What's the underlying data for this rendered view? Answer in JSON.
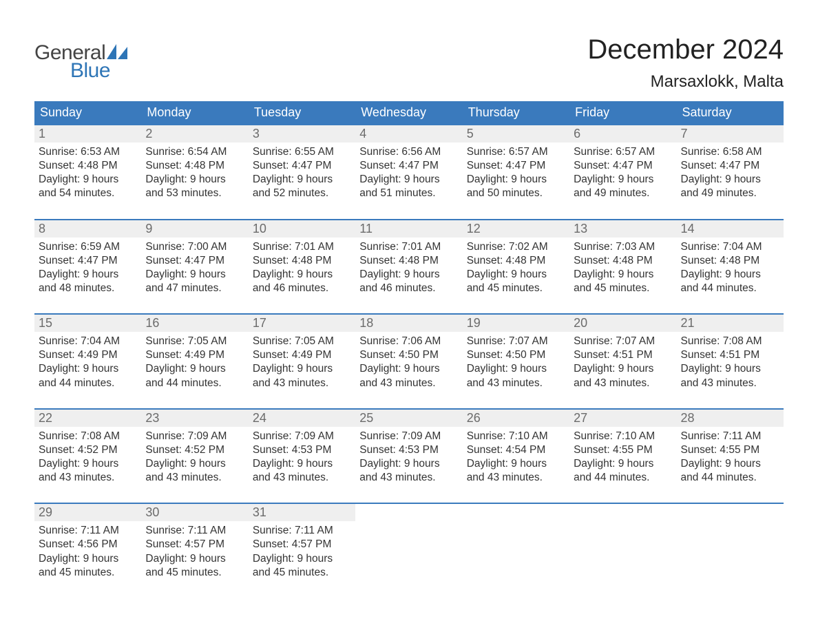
{
  "brand": {
    "general": "General",
    "blue": "Blue"
  },
  "title": "December 2024",
  "location": "Marsaxlokk, Malta",
  "colors": {
    "header_bg": "#3a7abd",
    "header_text": "#ffffff",
    "week_border": "#3a7abd",
    "daynum_bg": "#efefef",
    "daynum_text": "#6b6b6b",
    "body_text": "#333333",
    "logo_blue": "#2e75b6",
    "logo_gray": "#444444",
    "page_bg": "#ffffff"
  },
  "typography": {
    "title_fontsize": 40,
    "location_fontsize": 24,
    "header_fontsize": 18,
    "daynum_fontsize": 18,
    "body_fontsize": 15.5,
    "logo_fontsize": 30
  },
  "dayNames": [
    "Sunday",
    "Monday",
    "Tuesday",
    "Wednesday",
    "Thursday",
    "Friday",
    "Saturday"
  ],
  "weeks": [
    [
      {
        "n": "1",
        "sr": "6:53 AM",
        "ss": "4:48 PM",
        "dl": "9 hours and 54 minutes."
      },
      {
        "n": "2",
        "sr": "6:54 AM",
        "ss": "4:48 PM",
        "dl": "9 hours and 53 minutes."
      },
      {
        "n": "3",
        "sr": "6:55 AM",
        "ss": "4:47 PM",
        "dl": "9 hours and 52 minutes."
      },
      {
        "n": "4",
        "sr": "6:56 AM",
        "ss": "4:47 PM",
        "dl": "9 hours and 51 minutes."
      },
      {
        "n": "5",
        "sr": "6:57 AM",
        "ss": "4:47 PM",
        "dl": "9 hours and 50 minutes."
      },
      {
        "n": "6",
        "sr": "6:57 AM",
        "ss": "4:47 PM",
        "dl": "9 hours and 49 minutes."
      },
      {
        "n": "7",
        "sr": "6:58 AM",
        "ss": "4:47 PM",
        "dl": "9 hours and 49 minutes."
      }
    ],
    [
      {
        "n": "8",
        "sr": "6:59 AM",
        "ss": "4:47 PM",
        "dl": "9 hours and 48 minutes."
      },
      {
        "n": "9",
        "sr": "7:00 AM",
        "ss": "4:47 PM",
        "dl": "9 hours and 47 minutes."
      },
      {
        "n": "10",
        "sr": "7:01 AM",
        "ss": "4:48 PM",
        "dl": "9 hours and 46 minutes."
      },
      {
        "n": "11",
        "sr": "7:01 AM",
        "ss": "4:48 PM",
        "dl": "9 hours and 46 minutes."
      },
      {
        "n": "12",
        "sr": "7:02 AM",
        "ss": "4:48 PM",
        "dl": "9 hours and 45 minutes."
      },
      {
        "n": "13",
        "sr": "7:03 AM",
        "ss": "4:48 PM",
        "dl": "9 hours and 45 minutes."
      },
      {
        "n": "14",
        "sr": "7:04 AM",
        "ss": "4:48 PM",
        "dl": "9 hours and 44 minutes."
      }
    ],
    [
      {
        "n": "15",
        "sr": "7:04 AM",
        "ss": "4:49 PM",
        "dl": "9 hours and 44 minutes."
      },
      {
        "n": "16",
        "sr": "7:05 AM",
        "ss": "4:49 PM",
        "dl": "9 hours and 44 minutes."
      },
      {
        "n": "17",
        "sr": "7:05 AM",
        "ss": "4:49 PM",
        "dl": "9 hours and 43 minutes."
      },
      {
        "n": "18",
        "sr": "7:06 AM",
        "ss": "4:50 PM",
        "dl": "9 hours and 43 minutes."
      },
      {
        "n": "19",
        "sr": "7:07 AM",
        "ss": "4:50 PM",
        "dl": "9 hours and 43 minutes."
      },
      {
        "n": "20",
        "sr": "7:07 AM",
        "ss": "4:51 PM",
        "dl": "9 hours and 43 minutes."
      },
      {
        "n": "21",
        "sr": "7:08 AM",
        "ss": "4:51 PM",
        "dl": "9 hours and 43 minutes."
      }
    ],
    [
      {
        "n": "22",
        "sr": "7:08 AM",
        "ss": "4:52 PM",
        "dl": "9 hours and 43 minutes."
      },
      {
        "n": "23",
        "sr": "7:09 AM",
        "ss": "4:52 PM",
        "dl": "9 hours and 43 minutes."
      },
      {
        "n": "24",
        "sr": "7:09 AM",
        "ss": "4:53 PM",
        "dl": "9 hours and 43 minutes."
      },
      {
        "n": "25",
        "sr": "7:09 AM",
        "ss": "4:53 PM",
        "dl": "9 hours and 43 minutes."
      },
      {
        "n": "26",
        "sr": "7:10 AM",
        "ss": "4:54 PM",
        "dl": "9 hours and 43 minutes."
      },
      {
        "n": "27",
        "sr": "7:10 AM",
        "ss": "4:55 PM",
        "dl": "9 hours and 44 minutes."
      },
      {
        "n": "28",
        "sr": "7:11 AM",
        "ss": "4:55 PM",
        "dl": "9 hours and 44 minutes."
      }
    ],
    [
      {
        "n": "29",
        "sr": "7:11 AM",
        "ss": "4:56 PM",
        "dl": "9 hours and 45 minutes."
      },
      {
        "n": "30",
        "sr": "7:11 AM",
        "ss": "4:57 PM",
        "dl": "9 hours and 45 minutes."
      },
      {
        "n": "31",
        "sr": "7:11 AM",
        "ss": "4:57 PM",
        "dl": "9 hours and 45 minutes."
      },
      null,
      null,
      null,
      null
    ]
  ],
  "labels": {
    "sunrise": "Sunrise:",
    "sunset": "Sunset:",
    "daylight": "Daylight:"
  }
}
